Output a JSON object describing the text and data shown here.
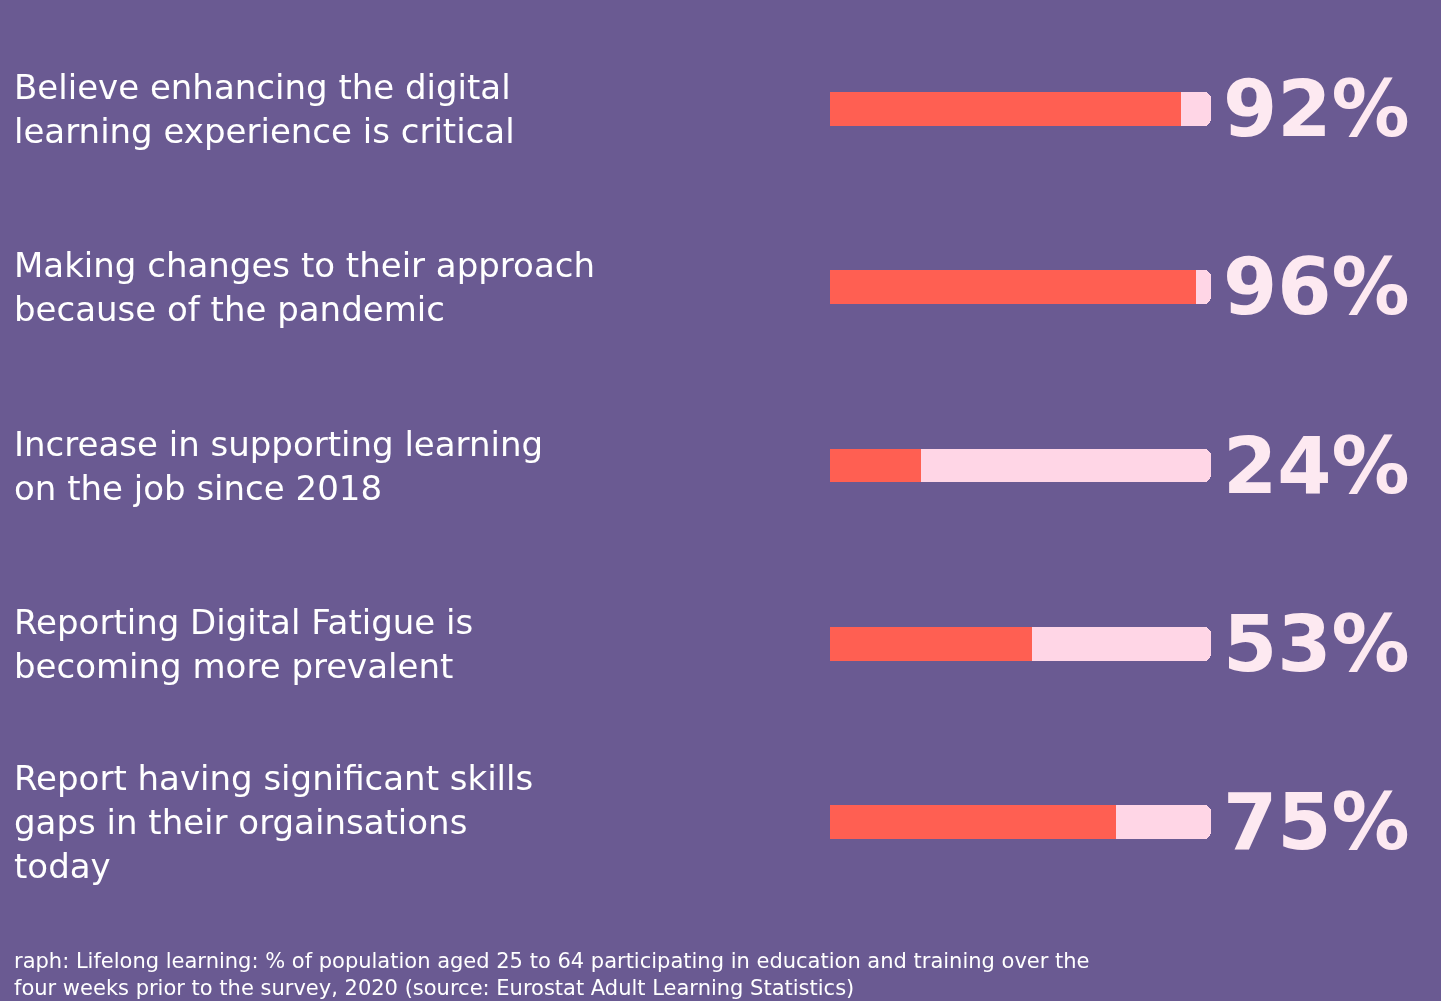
{
  "chart_data": {
    "type": "bar",
    "orientation": "horizontal",
    "stacked": true,
    "categories": [
      "Believe enhancing the digital learning experience is critical",
      "Making changes to their approach because of the pandemic",
      "Increase in supporting learning on the job since 2018",
      "Reporting Digital Fatigue is becoming more prevalent",
      "Report having significant skills gaps in their orgainsations today"
    ],
    "series": [
      {
        "color": "#ff5f52",
        "values": [
          92,
          96,
          24,
          53,
          75
        ],
        "value_labels": [
          "92%",
          "96%",
          "24%",
          "53%",
          "75%"
        ]
      },
      {
        "color": "#ffd6e6",
        "values": [
          8,
          4,
          76,
          47,
          25
        ]
      }
    ],
    "xlim": [
      0,
      100
    ],
    "annotations": [
      "raph: Lifelong learning: % of population aged 25 to 64 participating in education and training over the four weeks prior to the survey, 2020 (source: Eurostat Adult Learning Statistics)"
    ]
  }
}
